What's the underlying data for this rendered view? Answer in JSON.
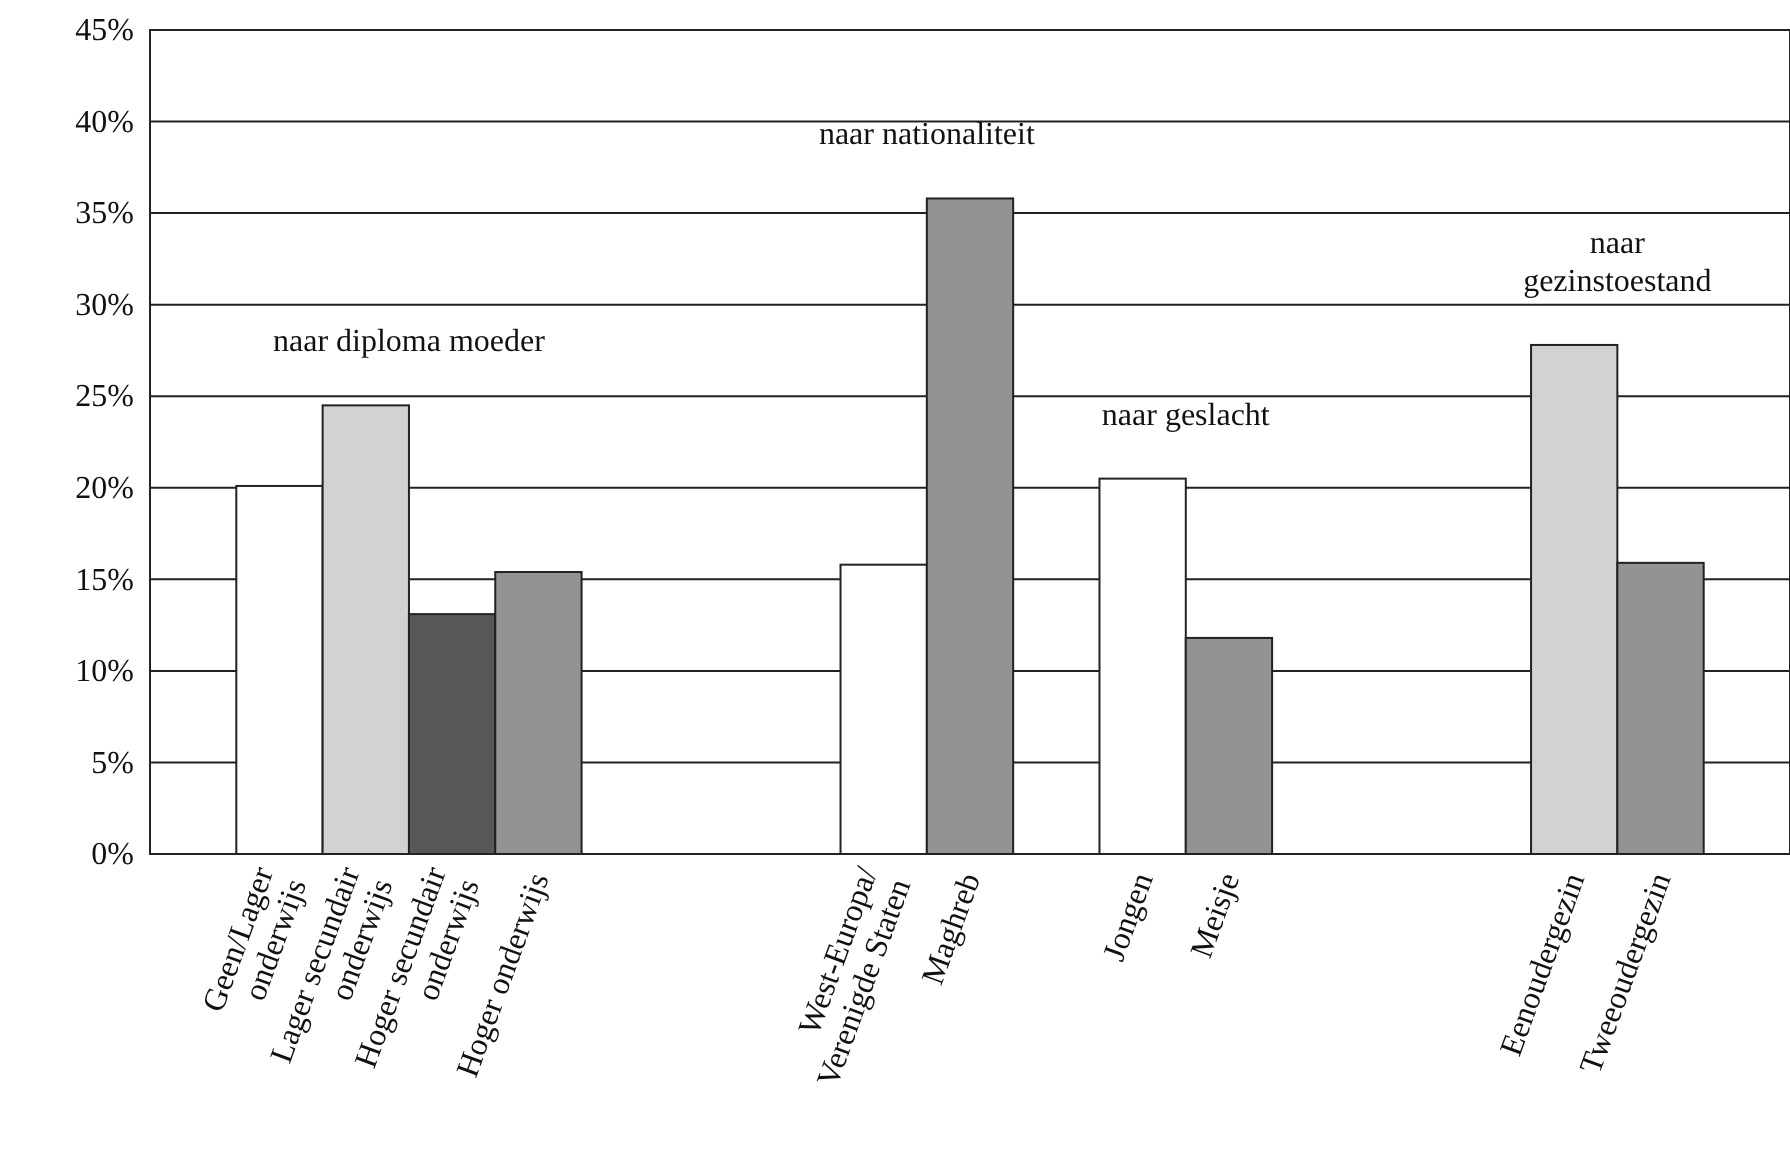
{
  "chart_data": {
    "type": "bar",
    "categories": [
      null,
      "Geen/Lager\nonderwijs",
      "Lager secundair\nonderwijs",
      "Hoger secundair\nonderwijs",
      "Hoger onderwijs",
      null,
      null,
      null,
      "West-Europa/\nVerenigde Staten",
      "Maghreb",
      null,
      "Jongen",
      "Meisje",
      null,
      null,
      null,
      "Eenoudergezin",
      "Tweeoudergezin",
      null
    ],
    "values": [
      null,
      20.1,
      24.5,
      13.1,
      15.4,
      null,
      null,
      null,
      15.8,
      35.8,
      null,
      20.5,
      11.8,
      null,
      null,
      null,
      27.8,
      15.9,
      null
    ],
    "colors": [
      null,
      "#ffffff",
      "#d2d2d4",
      "#58585a",
      "#939396",
      null,
      null,
      null,
      "#ffffff",
      "#939396",
      null,
      "#ffffff",
      "#939396",
      null,
      null,
      null,
      "#d2d2d4",
      "#939396",
      null
    ],
    "ylim": [
      0,
      45
    ],
    "yticks": [
      {
        "value": 0,
        "label": "0%"
      },
      {
        "value": 5,
        "label": "5%"
      },
      {
        "value": 10,
        "label": "10%"
      },
      {
        "value": 15,
        "label": "15%"
      },
      {
        "value": 20,
        "label": "20%"
      },
      {
        "value": 25,
        "label": "25%"
      },
      {
        "value": 30,
        "label": "30%"
      },
      {
        "value": 35,
        "label": "35%"
      },
      {
        "value": 40,
        "label": "40%"
      },
      {
        "value": 45,
        "label": "45%"
      }
    ],
    "grid": "y",
    "annotations": [
      "naar diploma moeder",
      "naar nationaliteit",
      "naar geslacht",
      "naar\ngezinstoestand"
    ]
  }
}
